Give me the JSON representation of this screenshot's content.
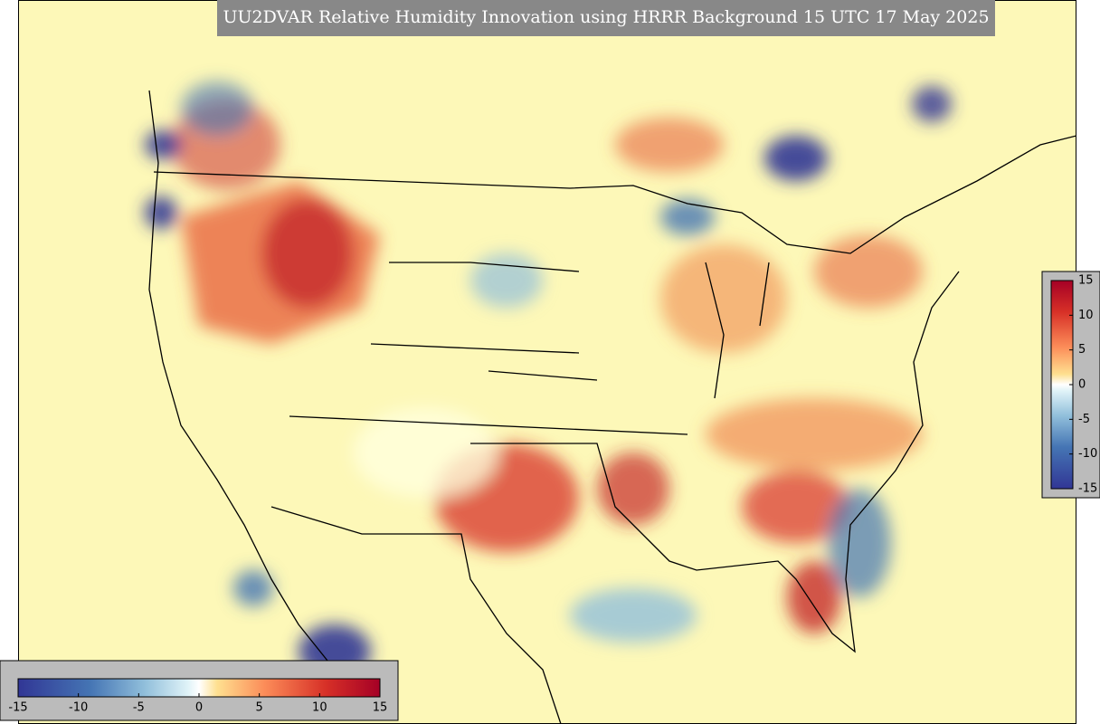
{
  "header": {
    "title": "UU2DVAR Relative Humidity Innovation using HRRR Background 15 UTC 17 May 2025"
  },
  "colorbars": [
    {
      "orientation": "vertical",
      "range": [
        -15,
        15
      ],
      "ticks": [
        15,
        10,
        5,
        0,
        -5,
        -10,
        -15
      ]
    },
    {
      "orientation": "horizontal",
      "range": [
        -15,
        15
      ],
      "ticks": [
        -15,
        -10,
        -5,
        0,
        5,
        10,
        15
      ]
    }
  ]
}
